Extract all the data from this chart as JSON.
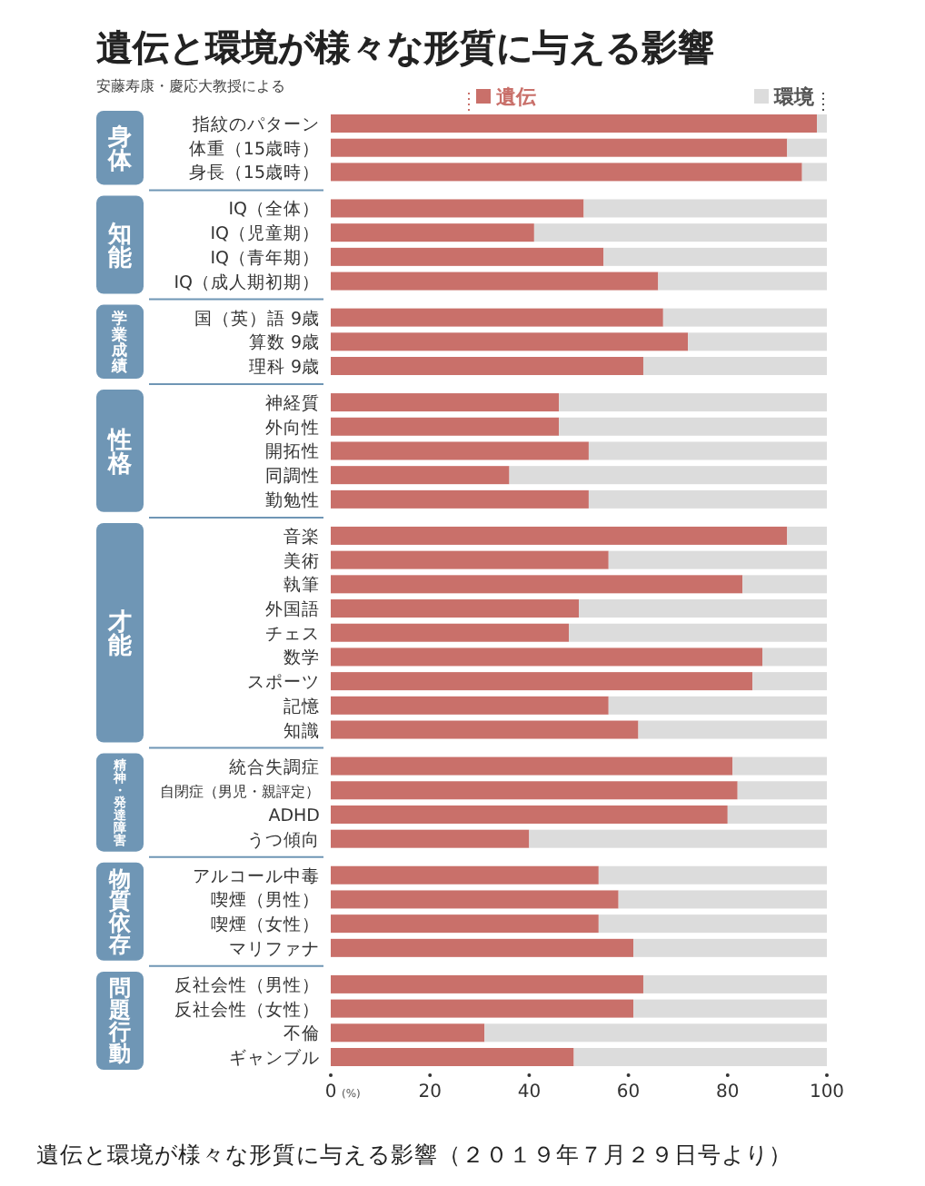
{
  "chart_data": {
    "type": "bar",
    "orientation": "horizontal",
    "stacked": true,
    "title": "遺伝と環境が様々な形質に与える影響",
    "subtitle": "安藤寿康・慶応大教授による",
    "categories": [
      "指紋のパターン",
      "体重（15歳時）",
      "身長（15歳時）",
      null,
      "IQ（全体）",
      "IQ（児童期）",
      "IQ（青年期）",
      "IQ（成人期初期）",
      null,
      "国（英）語 9歳",
      "算数 9歳",
      "理科 9歳",
      null,
      "神経質",
      "外向性",
      "開拓性",
      "同調性",
      "勤勉性",
      null,
      "音楽",
      "美術",
      "執筆",
      "外国語",
      "チェス",
      "数学",
      "スポーツ",
      "記憶",
      "知識",
      null,
      "統合失調症",
      "自閉症（男児・親評定）",
      "ADHD",
      "うつ傾向",
      null,
      "アルコール中毒",
      "喫煙（男性）",
      "喫煙（女性）",
      "マリファナ",
      null,
      "反社会性（男性）",
      "反社会性（女性）",
      "不倫",
      "ギャンブル"
    ],
    "series": [
      {
        "name": "遺伝",
        "color": "#c9706a",
        "values": [
          98,
          92,
          95,
          null,
          51,
          41,
          55,
          66,
          null,
          67,
          72,
          63,
          null,
          46,
          46,
          52,
          36,
          52,
          null,
          92,
          56,
          83,
          50,
          48,
          87,
          85,
          56,
          62,
          null,
          81,
          82,
          80,
          40,
          null,
          54,
          58,
          54,
          61,
          null,
          63,
          61,
          31,
          49
        ]
      },
      {
        "name": "環境",
        "color": "#dcdcdc",
        "values": [
          2,
          8,
          5,
          null,
          49,
          59,
          45,
          34,
          null,
          33,
          28,
          37,
          null,
          54,
          54,
          48,
          64,
          48,
          null,
          8,
          44,
          17,
          50,
          52,
          13,
          15,
          44,
          38,
          null,
          19,
          18,
          20,
          60,
          null,
          46,
          42,
          46,
          39,
          null,
          37,
          39,
          69,
          51
        ]
      }
    ],
    "xlim": [
      0,
      100
    ],
    "xticks": [
      {
        "value": 0,
        "label": "0"
      },
      20,
      40,
      60,
      80,
      100
    ],
    "xlabel": "(%)",
    "legend": "top",
    "annotations": [
      "身体",
      "知能",
      "学業成績",
      "性格",
      "才能",
      "精神・発達障害",
      "物質依存",
      "問題行動",
      "遺伝と環境が様々な形質に与える影響（２０１９年７月２９日号より）"
    ]
  }
}
